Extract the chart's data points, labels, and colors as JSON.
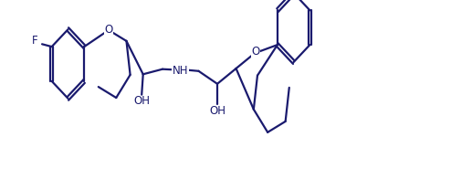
{
  "bg_color": "#ffffff",
  "line_color": "#1a1a6e",
  "line_width": 1.6,
  "font_size": 8.5,
  "figsize": [
    4.94,
    1.96
  ],
  "dpi": 100,
  "xlim": [
    0,
    6.5
  ],
  "ylim": [
    -0.15,
    1.25
  ]
}
